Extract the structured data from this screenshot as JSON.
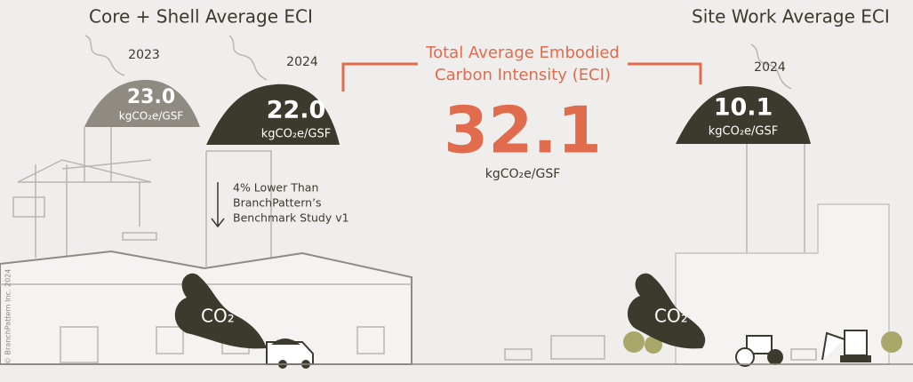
{
  "left": {
    "title": "Core + Shell Average ECI",
    "items": [
      {
        "year": "2023",
        "value": "23.0",
        "unit": "kgCO₂e/GSF"
      },
      {
        "year": "2024",
        "value": "22.0",
        "unit": "kgCO₂e/GSF"
      }
    ],
    "note_lines": [
      "4% Lower Than",
      "BranchPattern’s",
      "Benchmark Study v1"
    ],
    "co2": "CO₂"
  },
  "center": {
    "title_lines": [
      "Total Average Embodied",
      "Carbon Intensity (ECI)"
    ],
    "value": "32.1",
    "unit": "kgCO₂e/GSF"
  },
  "right": {
    "title": "Site Work Average ECI",
    "items": [
      {
        "year": "2024",
        "value": "10.1",
        "unit": "kgCO₂e/GSF"
      }
    ],
    "co2": "CO₂"
  },
  "copyright": "© BranchPattern Inc. 2024"
}
